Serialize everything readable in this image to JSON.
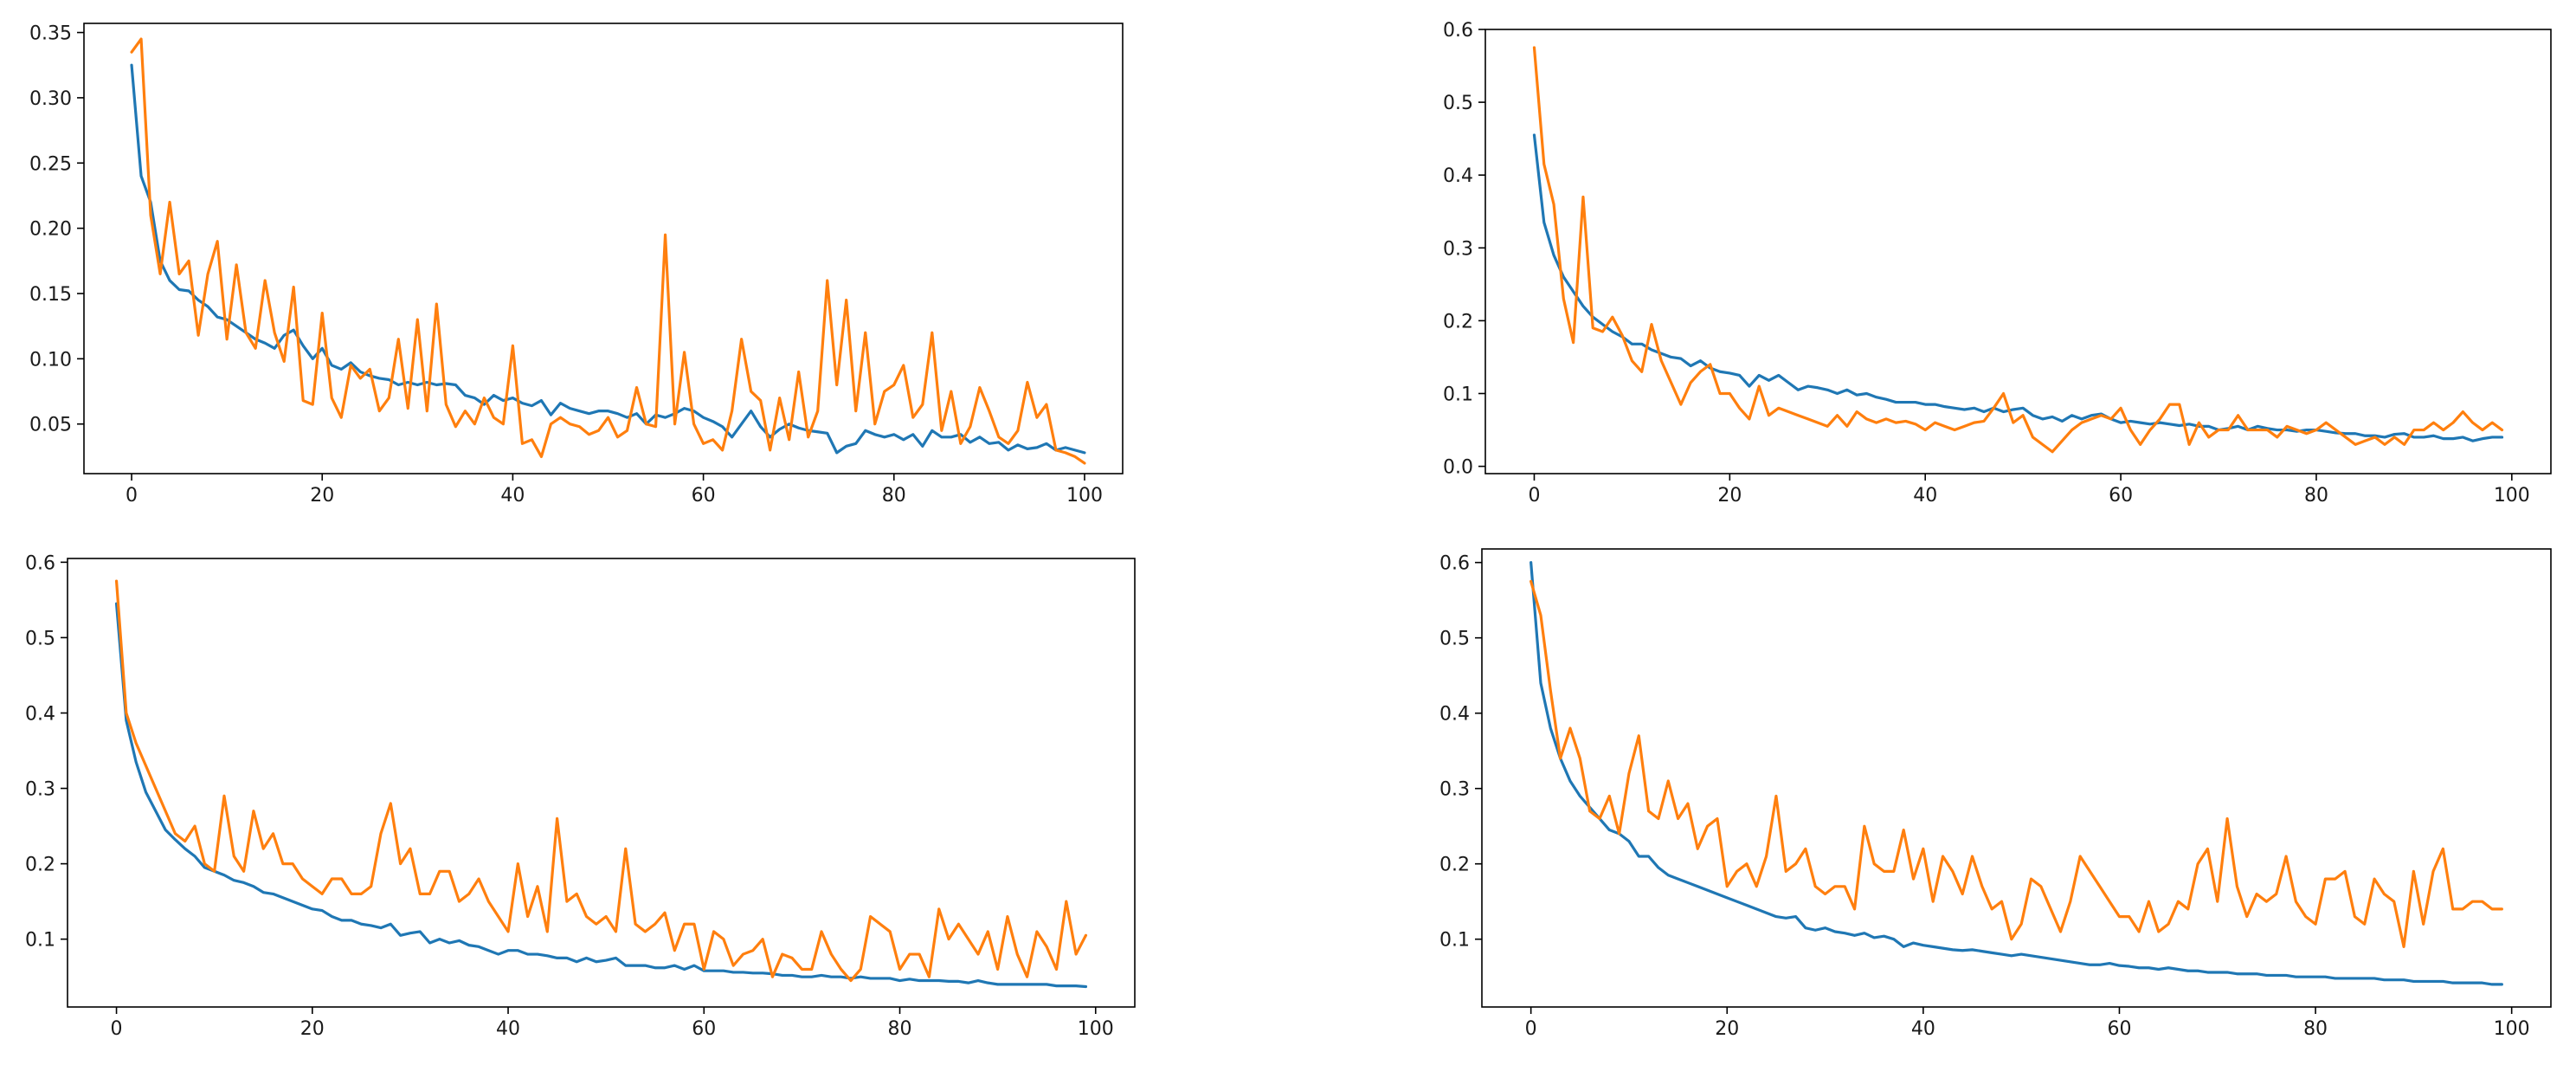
{
  "colors": {
    "series_0": "#1f77b4",
    "series_1": "#ff7f0e",
    "axes": "#000000"
  },
  "chart_data": [
    {
      "type": "line",
      "title": "",
      "xlabel": "",
      "ylabel": "",
      "xlim": [
        -5,
        104
      ],
      "ylim": [
        0.012,
        0.357
      ],
      "xticks": [
        0,
        20,
        40,
        60,
        80,
        100
      ],
      "yticks": [
        0.05,
        0.1,
        0.15,
        0.2,
        0.25,
        0.3,
        0.35
      ],
      "ytick_labels": [
        "0.05",
        "0.10",
        "0.15",
        "0.20",
        "0.25",
        "0.30",
        "0.35"
      ],
      "xtick_labels": [
        "0",
        "20",
        "40",
        "60",
        "80",
        "100"
      ],
      "grid": false,
      "legend": "none",
      "x_start": 0,
      "series": [
        {
          "color": "#1f77b4",
          "values": [
            0.325,
            0.24,
            0.22,
            0.175,
            0.16,
            0.153,
            0.152,
            0.145,
            0.14,
            0.132,
            0.13,
            0.125,
            0.12,
            0.115,
            0.112,
            0.108,
            0.118,
            0.122,
            0.11,
            0.1,
            0.108,
            0.095,
            0.092,
            0.097,
            0.09,
            0.087,
            0.085,
            0.084,
            0.08,
            0.082,
            0.08,
            0.082,
            0.08,
            0.081,
            0.08,
            0.072,
            0.07,
            0.065,
            0.072,
            0.068,
            0.07,
            0.066,
            0.064,
            0.068,
            0.057,
            0.066,
            0.062,
            0.06,
            0.058,
            0.06,
            0.06,
            0.058,
            0.055,
            0.058,
            0.05,
            0.057,
            0.055,
            0.058,
            0.062,
            0.06,
            0.055,
            0.052,
            0.048,
            0.04,
            0.05,
            0.06,
            0.048,
            0.04,
            0.046,
            0.05,
            0.047,
            0.045,
            0.044,
            0.043,
            0.028,
            0.033,
            0.035,
            0.045,
            0.042,
            0.04,
            0.042,
            0.038,
            0.042,
            0.033,
            0.045,
            0.04,
            0.04,
            0.042,
            0.036,
            0.04,
            0.035,
            0.036,
            0.03,
            0.034,
            0.031,
            0.032,
            0.035,
            0.03,
            0.032,
            0.03,
            0.028
          ]
        },
        {
          "color": "#ff7f0e",
          "values": [
            0.335,
            0.345,
            0.21,
            0.165,
            0.22,
            0.165,
            0.175,
            0.118,
            0.165,
            0.19,
            0.115,
            0.172,
            0.12,
            0.108,
            0.16,
            0.12,
            0.098,
            0.155,
            0.068,
            0.065,
            0.135,
            0.07,
            0.055,
            0.095,
            0.085,
            0.092,
            0.06,
            0.07,
            0.115,
            0.062,
            0.13,
            0.06,
            0.142,
            0.065,
            0.048,
            0.06,
            0.05,
            0.07,
            0.055,
            0.05,
            0.11,
            0.035,
            0.038,
            0.025,
            0.05,
            0.055,
            0.05,
            0.048,
            0.042,
            0.045,
            0.055,
            0.04,
            0.045,
            0.078,
            0.05,
            0.048,
            0.195,
            0.05,
            0.105,
            0.05,
            0.035,
            0.038,
            0.03,
            0.06,
            0.115,
            0.075,
            0.068,
            0.03,
            0.07,
            0.038,
            0.09,
            0.04,
            0.06,
            0.16,
            0.08,
            0.145,
            0.06,
            0.12,
            0.05,
            0.075,
            0.08,
            0.095,
            0.055,
            0.065,
            0.12,
            0.045,
            0.075,
            0.035,
            0.048,
            0.078,
            0.06,
            0.04,
            0.035,
            0.045,
            0.082,
            0.055,
            0.065,
            0.03,
            0.028,
            0.025,
            0.02
          ]
        }
      ]
    },
    {
      "type": "line",
      "title": "",
      "xlabel": "",
      "ylabel": "",
      "xlim": [
        -5,
        104
      ],
      "ylim": [
        -0.01,
        0.6
      ],
      "xticks": [
        0,
        20,
        40,
        60,
        80,
        100
      ],
      "yticks": [
        0.0,
        0.1,
        0.2,
        0.3,
        0.4,
        0.5,
        0.6
      ],
      "ytick_labels": [
        "0.0",
        "0.1",
        "0.2",
        "0.3",
        "0.4",
        "0.5",
        "0.6"
      ],
      "xtick_labels": [
        "0",
        "20",
        "40",
        "60",
        "80",
        "100"
      ],
      "grid": false,
      "legend": "none",
      "x_start": 0,
      "series": [
        {
          "color": "#1f77b4",
          "values": [
            0.455,
            0.335,
            0.29,
            0.26,
            0.24,
            0.22,
            0.205,
            0.195,
            0.185,
            0.178,
            0.168,
            0.168,
            0.16,
            0.155,
            0.15,
            0.148,
            0.138,
            0.145,
            0.135,
            0.13,
            0.128,
            0.125,
            0.11,
            0.125,
            0.118,
            0.125,
            0.115,
            0.105,
            0.11,
            0.108,
            0.105,
            0.1,
            0.105,
            0.098,
            0.1,
            0.095,
            0.092,
            0.088,
            0.088,
            0.088,
            0.085,
            0.085,
            0.082,
            0.08,
            0.078,
            0.08,
            0.075,
            0.08,
            0.075,
            0.078,
            0.08,
            0.07,
            0.065,
            0.068,
            0.062,
            0.07,
            0.065,
            0.07,
            0.072,
            0.065,
            0.06,
            0.062,
            0.06,
            0.058,
            0.06,
            0.058,
            0.056,
            0.058,
            0.055,
            0.055,
            0.05,
            0.052,
            0.055,
            0.05,
            0.055,
            0.052,
            0.05,
            0.05,
            0.048,
            0.05,
            0.05,
            0.048,
            0.046,
            0.045,
            0.045,
            0.042,
            0.042,
            0.04,
            0.044,
            0.045,
            0.04,
            0.04,
            0.042,
            0.038,
            0.038,
            0.04,
            0.035,
            0.038,
            0.04,
            0.04
          ]
        },
        {
          "color": "#ff7f0e",
          "values": [
            0.575,
            0.415,
            0.36,
            0.23,
            0.17,
            0.37,
            0.19,
            0.185,
            0.205,
            0.18,
            0.145,
            0.13,
            0.195,
            0.145,
            0.115,
            0.085,
            0.115,
            0.13,
            0.14,
            0.1,
            0.1,
            0.08,
            0.065,
            0.11,
            0.07,
            0.08,
            0.075,
            0.07,
            0.065,
            0.06,
            0.055,
            0.07,
            0.055,
            0.075,
            0.065,
            0.06,
            0.065,
            0.06,
            0.062,
            0.058,
            0.05,
            0.06,
            0.055,
            0.05,
            0.055,
            0.06,
            0.062,
            0.08,
            0.1,
            0.06,
            0.07,
            0.04,
            0.03,
            0.02,
            0.035,
            0.05,
            0.06,
            0.065,
            0.07,
            0.065,
            0.08,
            0.05,
            0.03,
            0.05,
            0.065,
            0.085,
            0.085,
            0.03,
            0.06,
            0.04,
            0.05,
            0.05,
            0.07,
            0.05,
            0.05,
            0.05,
            0.04,
            0.055,
            0.05,
            0.045,
            0.05,
            0.06,
            0.05,
            0.04,
            0.03,
            0.035,
            0.04,
            0.03,
            0.04,
            0.03,
            0.05,
            0.05,
            0.06,
            0.05,
            0.06,
            0.075,
            0.06,
            0.05,
            0.06,
            0.05
          ]
        }
      ]
    },
    {
      "type": "line",
      "title": "",
      "xlabel": "",
      "ylabel": "",
      "xlim": [
        -5,
        104
      ],
      "ylim": [
        0.01,
        0.605
      ],
      "xticks": [
        0,
        20,
        40,
        60,
        80,
        100
      ],
      "yticks": [
        0.1,
        0.2,
        0.3,
        0.4,
        0.5,
        0.6
      ],
      "ytick_labels": [
        "0.1",
        "0.2",
        "0.3",
        "0.4",
        "0.5",
        "0.6"
      ],
      "xtick_labels": [
        "0",
        "20",
        "40",
        "60",
        "80",
        "100"
      ],
      "grid": false,
      "legend": "none",
      "x_start": 0,
      "series": [
        {
          "color": "#1f77b4",
          "values": [
            0.545,
            0.39,
            0.335,
            0.295,
            0.27,
            0.245,
            0.232,
            0.22,
            0.21,
            0.195,
            0.19,
            0.185,
            0.178,
            0.175,
            0.17,
            0.162,
            0.16,
            0.155,
            0.15,
            0.145,
            0.14,
            0.138,
            0.13,
            0.125,
            0.125,
            0.12,
            0.118,
            0.115,
            0.12,
            0.105,
            0.108,
            0.11,
            0.095,
            0.1,
            0.095,
            0.098,
            0.092,
            0.09,
            0.085,
            0.08,
            0.085,
            0.085,
            0.08,
            0.08,
            0.078,
            0.075,
            0.075,
            0.07,
            0.075,
            0.07,
            0.072,
            0.075,
            0.065,
            0.065,
            0.065,
            0.062,
            0.062,
            0.065,
            0.06,
            0.065,
            0.058,
            0.058,
            0.058,
            0.056,
            0.056,
            0.055,
            0.055,
            0.054,
            0.052,
            0.052,
            0.05,
            0.05,
            0.052,
            0.05,
            0.05,
            0.048,
            0.05,
            0.048,
            0.048,
            0.048,
            0.045,
            0.047,
            0.045,
            0.045,
            0.045,
            0.044,
            0.044,
            0.042,
            0.045,
            0.042,
            0.04,
            0.04,
            0.04,
            0.04,
            0.04,
            0.04,
            0.038,
            0.038,
            0.038,
            0.037
          ]
        },
        {
          "color": "#ff7f0e",
          "values": [
            0.575,
            0.4,
            0.36,
            0.33,
            0.3,
            0.27,
            0.24,
            0.23,
            0.25,
            0.2,
            0.19,
            0.29,
            0.21,
            0.19,
            0.27,
            0.22,
            0.24,
            0.2,
            0.2,
            0.18,
            0.17,
            0.16,
            0.18,
            0.18,
            0.16,
            0.16,
            0.17,
            0.24,
            0.28,
            0.2,
            0.22,
            0.16,
            0.16,
            0.19,
            0.19,
            0.15,
            0.16,
            0.18,
            0.15,
            0.13,
            0.11,
            0.2,
            0.13,
            0.17,
            0.11,
            0.26,
            0.15,
            0.16,
            0.13,
            0.12,
            0.13,
            0.11,
            0.22,
            0.12,
            0.11,
            0.12,
            0.135,
            0.085,
            0.12,
            0.12,
            0.06,
            0.11,
            0.1,
            0.065,
            0.08,
            0.085,
            0.1,
            0.05,
            0.08,
            0.075,
            0.06,
            0.06,
            0.11,
            0.08,
            0.06,
            0.045,
            0.06,
            0.13,
            0.12,
            0.11,
            0.06,
            0.08,
            0.08,
            0.05,
            0.14,
            0.1,
            0.12,
            0.1,
            0.08,
            0.11,
            0.06,
            0.13,
            0.08,
            0.05,
            0.11,
            0.09,
            0.06,
            0.15,
            0.08,
            0.105
          ]
        }
      ]
    },
    {
      "type": "line",
      "title": "",
      "xlabel": "",
      "ylabel": "",
      "xlim": [
        -5,
        104
      ],
      "ylim": [
        0.01,
        0.618
      ],
      "xticks": [
        0,
        20,
        40,
        60,
        80,
        100
      ],
      "yticks": [
        0.1,
        0.2,
        0.3,
        0.4,
        0.5,
        0.6
      ],
      "ytick_labels": [
        "0.1",
        "0.2",
        "0.3",
        "0.4",
        "0.5",
        "0.6"
      ],
      "xtick_labels": [
        "0",
        "20",
        "40",
        "60",
        "80",
        "100"
      ],
      "grid": false,
      "legend": "none",
      "x_start": 0,
      "series": [
        {
          "color": "#1f77b4",
          "values": [
            0.6,
            0.44,
            0.38,
            0.34,
            0.31,
            0.29,
            0.275,
            0.26,
            0.245,
            0.24,
            0.23,
            0.21,
            0.21,
            0.195,
            0.185,
            0.18,
            0.175,
            0.17,
            0.165,
            0.16,
            0.155,
            0.15,
            0.145,
            0.14,
            0.135,
            0.13,
            0.128,
            0.13,
            0.115,
            0.112,
            0.115,
            0.11,
            0.108,
            0.105,
            0.108,
            0.102,
            0.104,
            0.1,
            0.09,
            0.095,
            0.092,
            0.09,
            0.088,
            0.086,
            0.085,
            0.086,
            0.084,
            0.082,
            0.08,
            0.078,
            0.08,
            0.078,
            0.076,
            0.074,
            0.072,
            0.07,
            0.068,
            0.066,
            0.066,
            0.068,
            0.065,
            0.064,
            0.062,
            0.062,
            0.06,
            0.062,
            0.06,
            0.058,
            0.058,
            0.056,
            0.056,
            0.056,
            0.054,
            0.054,
            0.054,
            0.052,
            0.052,
            0.052,
            0.05,
            0.05,
            0.05,
            0.05,
            0.048,
            0.048,
            0.048,
            0.048,
            0.048,
            0.046,
            0.046,
            0.046,
            0.044,
            0.044,
            0.044,
            0.044,
            0.042,
            0.042,
            0.042,
            0.042,
            0.04,
            0.04
          ]
        },
        {
          "color": "#ff7f0e",
          "values": [
            0.575,
            0.53,
            0.43,
            0.34,
            0.38,
            0.34,
            0.27,
            0.26,
            0.29,
            0.24,
            0.32,
            0.37,
            0.27,
            0.26,
            0.31,
            0.26,
            0.28,
            0.22,
            0.25,
            0.26,
            0.17,
            0.19,
            0.2,
            0.17,
            0.21,
            0.29,
            0.19,
            0.2,
            0.22,
            0.17,
            0.16,
            0.17,
            0.17,
            0.14,
            0.25,
            0.2,
            0.19,
            0.19,
            0.245,
            0.18,
            0.22,
            0.15,
            0.21,
            0.19,
            0.16,
            0.21,
            0.17,
            0.14,
            0.15,
            0.1,
            0.12,
            0.18,
            0.17,
            0.14,
            0.11,
            0.15,
            0.21,
            0.19,
            0.17,
            0.15,
            0.13,
            0.13,
            0.11,
            0.15,
            0.11,
            0.12,
            0.15,
            0.14,
            0.2,
            0.22,
            0.15,
            0.26,
            0.17,
            0.13,
            0.16,
            0.15,
            0.16,
            0.21,
            0.15,
            0.13,
            0.12,
            0.18,
            0.18,
            0.19,
            0.13,
            0.12,
            0.18,
            0.16,
            0.15,
            0.09,
            0.19,
            0.12,
            0.19,
            0.22,
            0.14,
            0.14,
            0.15,
            0.15,
            0.14,
            0.14
          ]
        }
      ]
    }
  ]
}
